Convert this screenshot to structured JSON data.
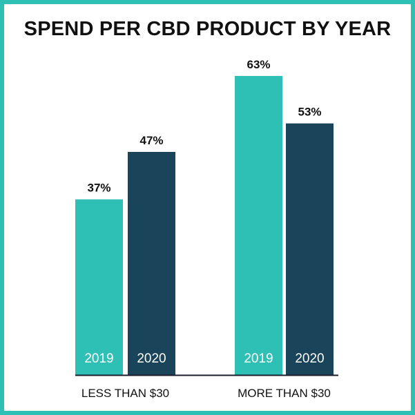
{
  "chart_data": {
    "type": "bar",
    "title": "SPEND PER CBD PRODUCT BY YEAR",
    "categories": [
      "LESS THAN $30",
      "MORE THAN $30"
    ],
    "series": [
      {
        "name": "2019",
        "values": [
          37,
          63
        ],
        "labels": [
          "37%",
          "63%"
        ]
      },
      {
        "name": "2020",
        "values": [
          47,
          53
        ],
        "labels": [
          "47%",
          "53%"
        ]
      }
    ],
    "ylim": [
      0,
      63
    ],
    "xlabel": "",
    "ylabel": "",
    "grid": false,
    "legend": "none (series names shown inside bars)"
  },
  "colors": {
    "series_2019": "#2ebfb5",
    "series_2020": "#1a4459",
    "border": "#2ebfb5",
    "axis": "#1b1b2e"
  }
}
